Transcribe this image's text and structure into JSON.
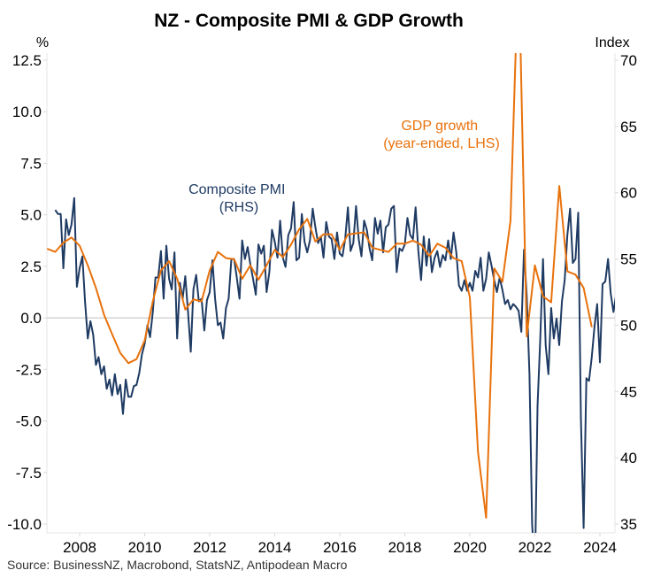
{
  "chart_data": {
    "type": "line",
    "title": "NZ - Composite PMI & GDP Growth",
    "source": "Source: BusinessNZ, Macrobond, StatsNZ, Antipodean Macro",
    "left_axis": {
      "unit": "%",
      "ylim": [
        -10.0,
        12.5
      ],
      "ticks": [
        "12.5",
        "10.0",
        "7.5",
        "5.0",
        "2.5",
        "0.0",
        "-2.5",
        "-5.0",
        "-7.5",
        "-10.0"
      ],
      "tick_values": [
        12.5,
        10.0,
        7.5,
        5.0,
        2.5,
        0.0,
        -2.5,
        -5.0,
        -7.5,
        -10.0
      ]
    },
    "right_axis": {
      "unit": "Index",
      "ylim": [
        35,
        70
      ],
      "ticks": [
        "70",
        "65",
        "60",
        "55",
        "50",
        "45",
        "40",
        "35"
      ],
      "tick_values": [
        70,
        65,
        60,
        55,
        50,
        45,
        40,
        35
      ]
    },
    "x_axis": {
      "xlim": [
        2007.0,
        2024.3
      ],
      "ticks": [
        "2008",
        "2010",
        "2012",
        "2014",
        "2016",
        "2018",
        "2020",
        "2022",
        "2024"
      ],
      "tick_values": [
        2008,
        2010,
        2012,
        2014,
        2016,
        2018,
        2020,
        2022,
        2024
      ]
    },
    "zero_line": 0.0,
    "grid": false,
    "series": [
      {
        "name": "GDP growth (year-ended, LHS)",
        "label_lines": [
          "GDP growth",
          "(year-ended, LHS)"
        ],
        "axis": "left",
        "color": "#E8720C",
        "x": [
          2007.0,
          2007.25,
          2007.5,
          2007.75,
          2008.0,
          2008.25,
          2008.5,
          2008.75,
          2009.0,
          2009.25,
          2009.5,
          2009.75,
          2010.0,
          2010.25,
          2010.5,
          2010.75,
          2011.0,
          2011.25,
          2011.5,
          2011.75,
          2012.0,
          2012.25,
          2012.5,
          2012.75,
          2013.0,
          2013.25,
          2013.5,
          2013.75,
          2014.0,
          2014.25,
          2014.5,
          2014.75,
          2015.0,
          2015.25,
          2015.5,
          2015.75,
          2016.0,
          2016.25,
          2016.5,
          2016.75,
          2017.0,
          2017.25,
          2017.5,
          2017.75,
          2018.0,
          2018.25,
          2018.5,
          2018.75,
          2019.0,
          2019.25,
          2019.5,
          2019.75,
          2020.0,
          2020.25,
          2020.5,
          2020.75,
          2021.0,
          2021.25,
          2021.5,
          2021.75,
          2022.0,
          2022.25,
          2022.5,
          2022.75,
          2023.0,
          2023.25,
          2023.5,
          2023.75
        ],
        "values": [
          3.35,
          3.2,
          3.65,
          3.9,
          3.5,
          2.55,
          1.45,
          0.15,
          -0.8,
          -1.7,
          -2.2,
          -2.0,
          -1.1,
          0.8,
          2.3,
          2.75,
          1.9,
          0.4,
          0.9,
          0.8,
          2.3,
          3.2,
          2.9,
          2.85,
          1.9,
          2.55,
          1.85,
          2.55,
          3.3,
          2.95,
          3.55,
          4.3,
          4.8,
          3.7,
          4.05,
          4.05,
          3.3,
          4.05,
          4.1,
          4.15,
          3.4,
          3.3,
          3.2,
          3.6,
          3.6,
          3.75,
          3.55,
          3.0,
          3.6,
          3.4,
          2.9,
          2.75,
          1.0,
          -6.5,
          -9.7,
          2.4,
          1.75,
          4.7,
          17.5,
          -0.9,
          2.55,
          1.05,
          0.75,
          6.4,
          2.25,
          2.1,
          1.45,
          -0.45
        ]
      },
      {
        "name": "Composite PMI (RHS)",
        "label_lines": [
          "Composite PMI",
          "(RHS)"
        ],
        "axis": "right",
        "color": "#1F3B63",
        "x_start": 2007.25,
        "x_step": 0.08333,
        "values": [
          58.7,
          58.4,
          58.4,
          54.3,
          58.0,
          56.8,
          57.6,
          59.6,
          52.9,
          54.3,
          55.2,
          51.8,
          49.0,
          50.3,
          49.3,
          47.0,
          47.6,
          46.3,
          46.9,
          45.2,
          45.9,
          44.7,
          46.3,
          44.8,
          45.5,
          43.3,
          45.9,
          44.6,
          44.6,
          45.4,
          45.5,
          46.4,
          47.8,
          48.6,
          50.0,
          49.1,
          51.0,
          53.6,
          53.6,
          55.6,
          52.0,
          56.0,
          53.5,
          52.7,
          55.5,
          49.0,
          53.2,
          52.0,
          53.7,
          51.0,
          48.0,
          52.7,
          53.8,
          51.8,
          52.0,
          49.6,
          51.9,
          52.5,
          54.9,
          52.0,
          50.0,
          50.2,
          49.0,
          51.3,
          52.0,
          55.0,
          55.0,
          53.6,
          52.0,
          56.4,
          55.0,
          55.9,
          54.6,
          53.5,
          52.3,
          56.1,
          55.4,
          56.0,
          52.5,
          54.0,
          57.2,
          56.3,
          55.1,
          57.9,
          55.1,
          54.4,
          56.8,
          57.3,
          59.3,
          54.9,
          55.1,
          58.4,
          56.3,
          55.5,
          56.4,
          58.8,
          57.4,
          56.2,
          56.7,
          55.1,
          57.8,
          56.7,
          56.5,
          55.0,
          57.0,
          55.4,
          55.2,
          56.5,
          58.9,
          55.6,
          56.2,
          59.0,
          56.5,
          55.2,
          57.9,
          57.2,
          55.8,
          54.9,
          58.1,
          56.9,
          57.9,
          55.5,
          57.4,
          57.6,
          58.8,
          59.0,
          54.0,
          55.8,
          55.6,
          56.1,
          58.1,
          56.8,
          56.5,
          58.9,
          55.6,
          53.4,
          56.7,
          54.5,
          56.5,
          54.0,
          55.1,
          55.6,
          54.4,
          55.3,
          54.9,
          56.4,
          55.0,
          57.0,
          55.5,
          53.0,
          52.6,
          53.4,
          52.6,
          53.2,
          52.6,
          54.1,
          53.6,
          55.1,
          52.6,
          53.5,
          55.5,
          54.5,
          53.4,
          52.5,
          53.6,
          52.7,
          51.6,
          51.9,
          51.2,
          51.6,
          51.4,
          51.1,
          49.5,
          55.7,
          52.2,
          46.3,
          35.0,
          31.0,
          43.9,
          49.0,
          55.0,
          48.5,
          46.3,
          51.3,
          49.0,
          50.5,
          48.5,
          51.8,
          53.4,
          56.8,
          58.8,
          54.7,
          55.0,
          58.5,
          43.0,
          34.7,
          46.0,
          45.8,
          47.6,
          49.9,
          51.6,
          47.2,
          53.1,
          53.3,
          55.0,
          52.4,
          51.0,
          52.3,
          53.6,
          52.8,
          52.7,
          54.8,
          55.8,
          58.5,
          56.1,
          57.3,
          53.6,
          55.9,
          53.4,
          52.6,
          54.6,
          55.2,
          53.1,
          50.3,
          52.2,
          50.6,
          48.8,
          48.3,
          49.6,
          50.8,
          48.4,
          50.5,
          48.6
        ]
      }
    ]
  }
}
